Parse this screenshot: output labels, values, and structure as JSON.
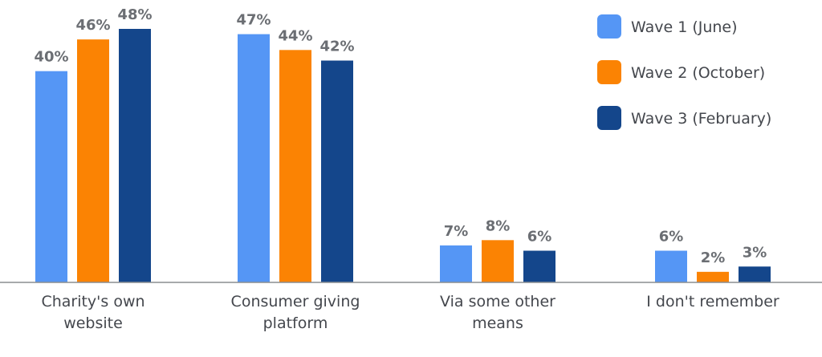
{
  "chart_data": {
    "type": "bar",
    "title": "",
    "xlabel": "",
    "ylabel": "",
    "ylim": [
      0,
      48
    ],
    "grid": false,
    "legend_position": "top-right",
    "categories": [
      [
        "Charity's own",
        "website"
      ],
      [
        "Consumer giving",
        "platform"
      ],
      [
        "Via some other",
        "means"
      ],
      [
        "I don't remember"
      ]
    ],
    "series": [
      {
        "name": "Wave 1 (June)",
        "color": "#5596f5",
        "values": [
          40,
          47,
          7,
          6
        ],
        "labels": [
          "40%",
          "47%",
          "7%",
          "6%"
        ]
      },
      {
        "name": "Wave 2 (October)",
        "color": "#fb8303",
        "values": [
          46,
          44,
          8,
          2
        ],
        "labels": [
          "46%",
          "44%",
          "8%",
          "2%"
        ]
      },
      {
        "name": "Wave 3 (February)",
        "color": "#14468b",
        "values": [
          48,
          42,
          6,
          3
        ],
        "labels": [
          "48%",
          "42%",
          "6%",
          "3%"
        ]
      }
    ]
  }
}
